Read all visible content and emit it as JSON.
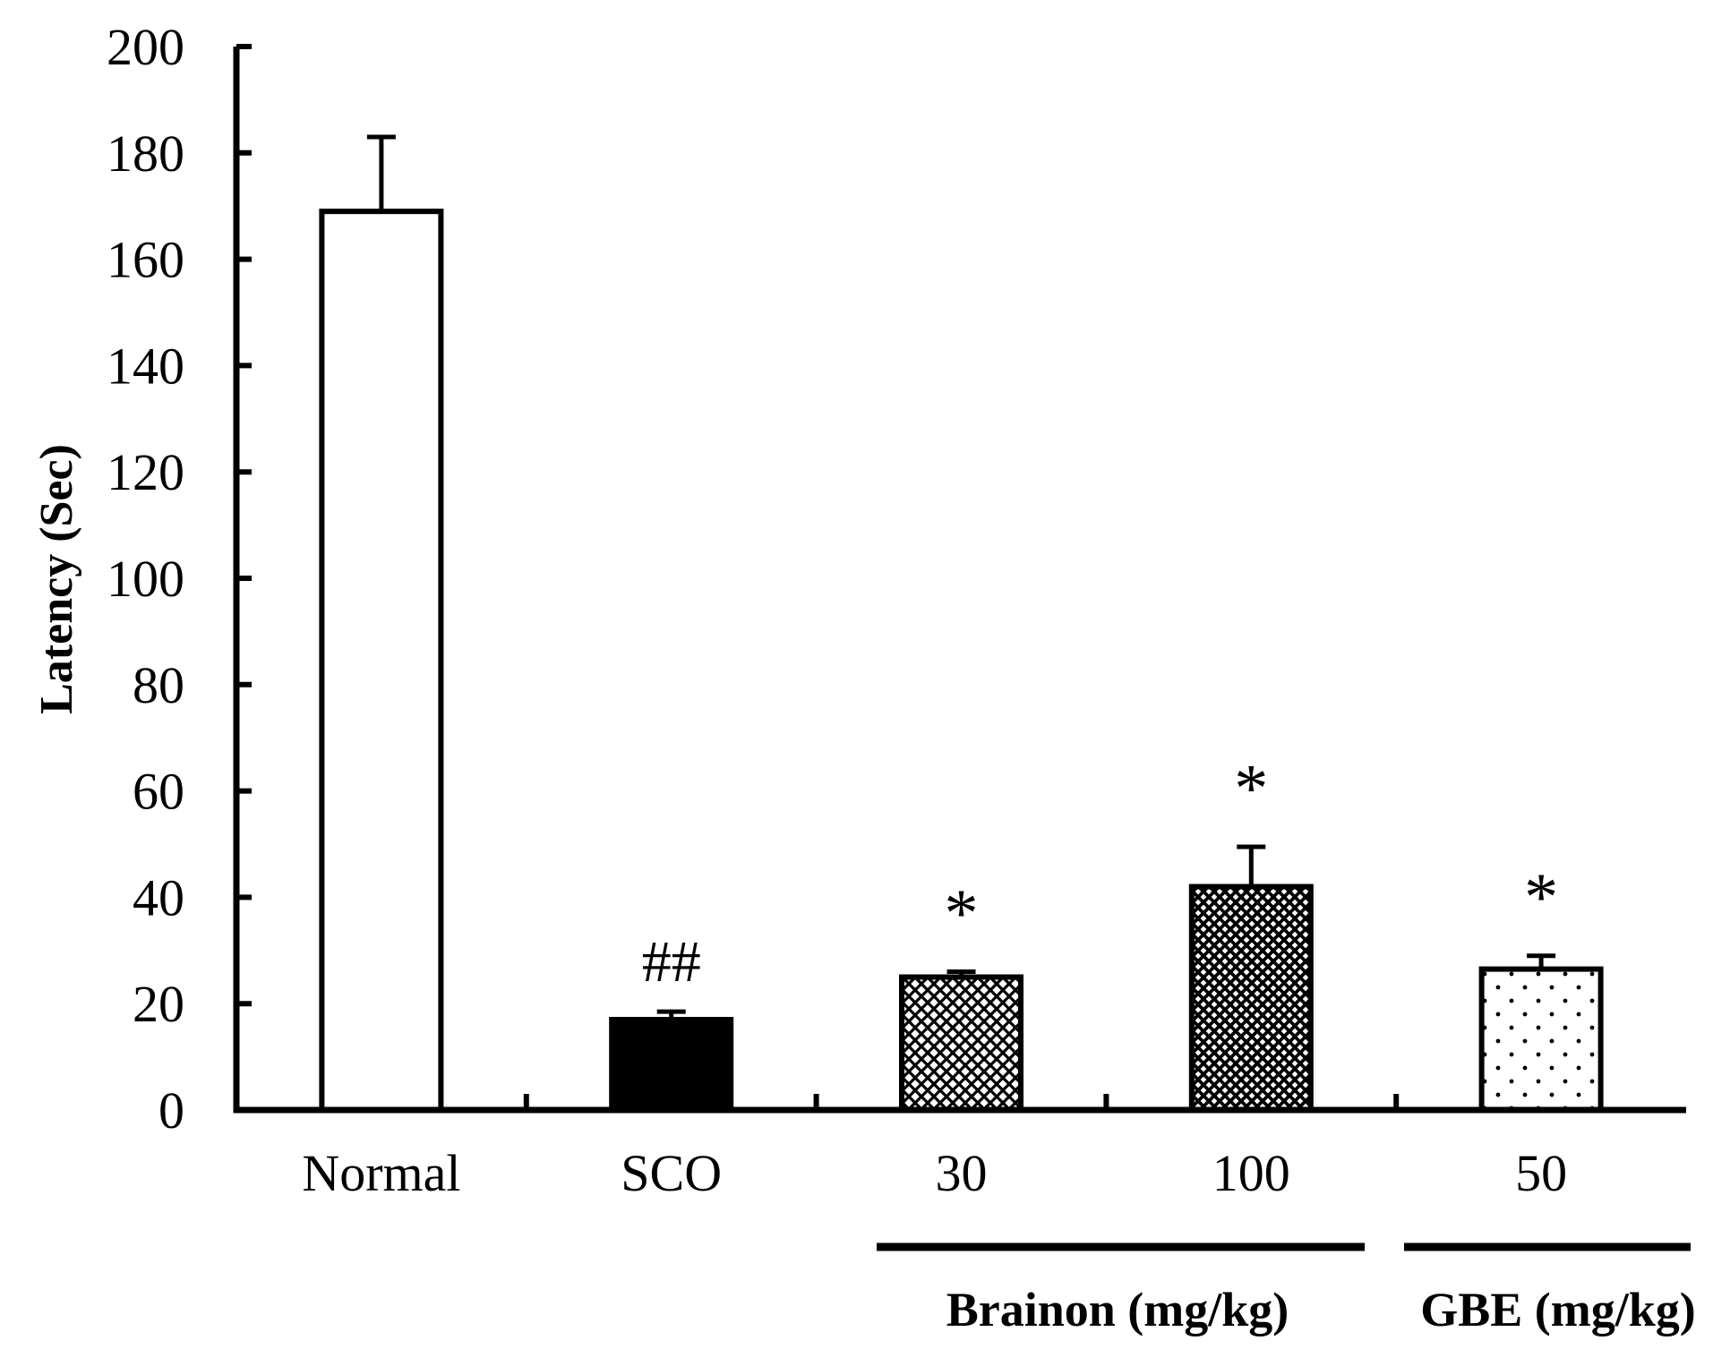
{
  "chart_data": {
    "type": "bar",
    "title": "",
    "xlabel": "",
    "ylabel": "Latency (Sec)",
    "ylim": [
      0,
      200
    ],
    "yticks": [
      "0",
      "20",
      "40",
      "60",
      "80",
      "100",
      "120",
      "140",
      "160",
      "180",
      "200"
    ],
    "grid": false,
    "categories": [
      "Normal",
      "SCO",
      "30",
      "100",
      "50"
    ],
    "values": [
      169,
      17,
      25,
      42,
      26.5
    ],
    "errors": [
      14,
      1.5,
      1,
      7.5,
      2.5
    ],
    "fills": [
      "white",
      "black",
      "crosshatch-fine",
      "crosshatch-dense",
      "dots-sparse"
    ],
    "annotations": [
      "",
      "##",
      "*",
      "*",
      "*"
    ],
    "groups": [
      {
        "label": "Brainon (mg/kg)",
        "categories": [
          "30",
          "100"
        ]
      },
      {
        "label": "GBE (mg/kg)",
        "categories": [
          "50"
        ]
      }
    ],
    "colors": {
      "axis": "#000000",
      "bar_stroke": "#000000",
      "background": "#ffffff"
    }
  }
}
